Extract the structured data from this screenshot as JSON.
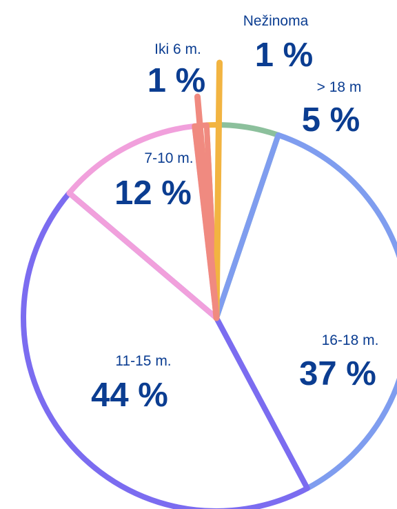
{
  "chart_data": {
    "type": "pie",
    "title": "",
    "slices": [
      {
        "label": "Nežinoma",
        "value_label": "1 %",
        "value": 1,
        "color": "#f2b441"
      },
      {
        "label": "> 18 m",
        "value_label": "5 %",
        "value": 5,
        "color": "#8cc09c"
      },
      {
        "label": "16-18 m.",
        "value_label": "37 %",
        "value": 37,
        "color": "#7f9def"
      },
      {
        "label": "11-15 m.",
        "value_label": "44 %",
        "value": 44,
        "color": "#7b6cf0"
      },
      {
        "label": "7-10 m.",
        "value_label": "12 %",
        "value": 12,
        "color": "#f1a0dc"
      },
      {
        "label": "Iki 6 m.",
        "value_label": "1 %",
        "value": 1,
        "color": "#f08a80"
      }
    ]
  }
}
